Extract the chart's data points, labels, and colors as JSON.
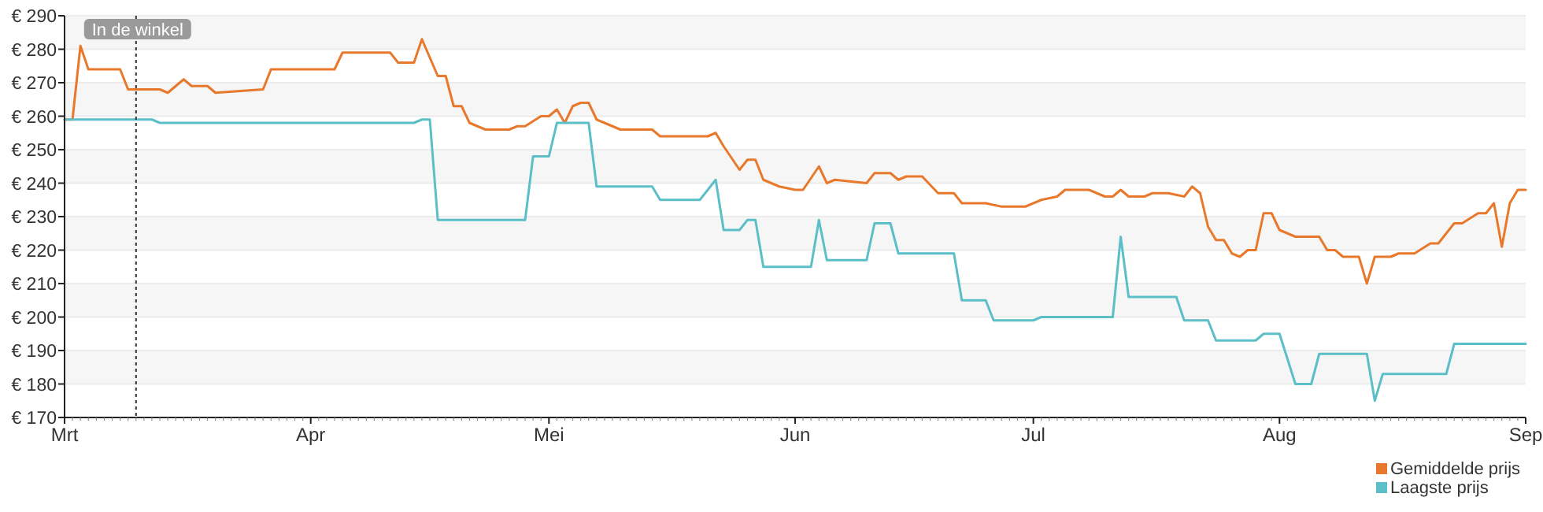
{
  "chart_data": {
    "type": "line",
    "xlim": [
      "--03-01",
      "--09-01"
    ],
    "xticks": [
      {
        "value": "--03-01",
        "label": "Mrt"
      },
      {
        "value": "--04-01",
        "label": "Apr"
      },
      {
        "value": "--05-01",
        "label": "Mei"
      },
      {
        "value": "--06-01",
        "label": "Jun"
      },
      {
        "value": "--07-01",
        "label": "Jul"
      },
      {
        "value": "--08-01",
        "label": "Aug"
      },
      {
        "value": "--09-01",
        "label": "Sep"
      }
    ],
    "ylim": [
      170,
      290
    ],
    "yticks": [
      {
        "value": 170,
        "label": "€ 170"
      },
      {
        "value": 180,
        "label": "€ 180"
      },
      {
        "value": 190,
        "label": "€ 190"
      },
      {
        "value": 200,
        "label": "€ 200"
      },
      {
        "value": 210,
        "label": "€ 210"
      },
      {
        "value": 220,
        "label": "€ 220"
      },
      {
        "value": 230,
        "label": "€ 230"
      },
      {
        "value": 240,
        "label": "€ 240"
      },
      {
        "value": 250,
        "label": "€ 250"
      },
      {
        "value": 260,
        "label": "€ 260"
      },
      {
        "value": 270,
        "label": "€ 270"
      },
      {
        "value": 280,
        "label": "€ 280"
      },
      {
        "value": 290,
        "label": "€ 290"
      }
    ],
    "grid": "y",
    "legend": "bottom right",
    "marker": "none",
    "line_style": "solid",
    "ref_lines": [
      {
        "axis": "x",
        "value": "--03-10",
        "label": "In de winkel",
        "line_style": "dotted",
        "color": "#333333"
      }
    ],
    "series": [
      {
        "name": "Gemiddelde prijs",
        "color": "#e8792c",
        "x": [
          "--03-01",
          "--03-02",
          "--03-03",
          "--03-04",
          "--03-08",
          "--03-09",
          "--03-13",
          "--03-14",
          "--03-16",
          "--03-17",
          "--03-19",
          "--03-20",
          "--03-26",
          "--03-27",
          "--04-04",
          "--04-05",
          "--04-11",
          "--04-12",
          "--04-14",
          "--04-15",
          "--04-17",
          "--04-18",
          "--04-19",
          "--04-20",
          "--04-21",
          "--04-23",
          "--04-26",
          "--04-27",
          "--04-28",
          "--04-30",
          "--05-01",
          "--05-02",
          "--05-03",
          "--05-04",
          "--05-05",
          "--05-06",
          "--05-07",
          "--05-08",
          "--05-10",
          "--05-14",
          "--05-15",
          "--05-21",
          "--05-22",
          "--05-23",
          "--05-25",
          "--05-26",
          "--05-27",
          "--05-28",
          "--05-29",
          "--05-30",
          "--06-01",
          "--06-02",
          "--06-04",
          "--06-05",
          "--06-06",
          "--06-10",
          "--06-11",
          "--06-13",
          "--06-14",
          "--06-15",
          "--06-17",
          "--06-19",
          "--06-21",
          "--06-22",
          "--06-25",
          "--06-27",
          "--06-30",
          "--07-02",
          "--07-04",
          "--07-05",
          "--07-08",
          "--07-10",
          "--07-11",
          "--07-12",
          "--07-13",
          "--07-15",
          "--07-16",
          "--07-18",
          "--07-20",
          "--07-21",
          "--07-22",
          "--07-23",
          "--07-24",
          "--07-25",
          "--07-26",
          "--07-27",
          "--07-28",
          "--07-29",
          "--07-30",
          "--07-31",
          "--08-01",
          "--08-03",
          "--08-06",
          "--08-07",
          "--08-08",
          "--08-09",
          "--08-11",
          "--08-12",
          "--08-13",
          "--08-15",
          "--08-16",
          "--08-18",
          "--08-20",
          "--08-21",
          "--08-23",
          "--08-24",
          "--08-26",
          "--08-27",
          "--08-28",
          "--08-29",
          "--08-30",
          "--08-31",
          "--09-01"
        ],
        "values": [
          259,
          259,
          281,
          274,
          274,
          268,
          268,
          267,
          271,
          269,
          269,
          267,
          268,
          274,
          274,
          279,
          279,
          276,
          276,
          283,
          272,
          272,
          263,
          263,
          258,
          256,
          256,
          257,
          257,
          260,
          260,
          262,
          258,
          263,
          264,
          264,
          259,
          258,
          256,
          256,
          254,
          254,
          255,
          251,
          244,
          247,
          247,
          241,
          240,
          239,
          238,
          238,
          245,
          240,
          241,
          240,
          243,
          243,
          241,
          242,
          242,
          237,
          237,
          234,
          234,
          233,
          233,
          235,
          236,
          238,
          238,
          236,
          236,
          238,
          236,
          236,
          237,
          237,
          236,
          239,
          237,
          227,
          223,
          223,
          219,
          218,
          220,
          220,
          231,
          231,
          226,
          224,
          224,
          220,
          220,
          218,
          218,
          210,
          218,
          218,
          219,
          219,
          222,
          222,
          228,
          228,
          231,
          231,
          234,
          221,
          234,
          238,
          238
        ]
      },
      {
        "name": "Laagste prijs",
        "color": "#5cbfc8",
        "x": [
          "--03-01",
          "--03-12",
          "--03-13",
          "--04-14",
          "--04-15",
          "--04-16",
          "--04-17",
          "--04-28",
          "--04-29",
          "--05-01",
          "--05-02",
          "--05-06",
          "--05-07",
          "--05-14",
          "--05-15",
          "--05-20",
          "--05-22",
          "--05-23",
          "--05-25",
          "--05-26",
          "--05-27",
          "--05-28",
          "--06-03",
          "--06-04",
          "--06-05",
          "--06-10",
          "--06-11",
          "--06-13",
          "--06-14",
          "--06-21",
          "--06-22",
          "--06-25",
          "--06-26",
          "--07-01",
          "--07-02",
          "--07-11",
          "--07-12",
          "--07-13",
          "--07-19",
          "--07-20",
          "--07-23",
          "--07-24",
          "--07-29",
          "--07-30",
          "--08-01",
          "--08-03",
          "--08-05",
          "--08-06",
          "--08-12",
          "--08-13",
          "--08-14",
          "--08-22",
          "--08-23",
          "--09-01"
        ],
        "values": [
          259,
          259,
          258,
          258,
          259,
          259,
          229,
          229,
          248,
          248,
          258,
          258,
          239,
          239,
          235,
          235,
          241,
          226,
          226,
          229,
          229,
          215,
          215,
          229,
          217,
          217,
          228,
          228,
          219,
          219,
          205,
          205,
          199,
          199,
          200,
          200,
          224,
          206,
          206,
          199,
          199,
          193,
          193,
          195,
          195,
          180,
          180,
          189,
          189,
          175,
          183,
          183,
          192,
          192
        ]
      }
    ]
  }
}
